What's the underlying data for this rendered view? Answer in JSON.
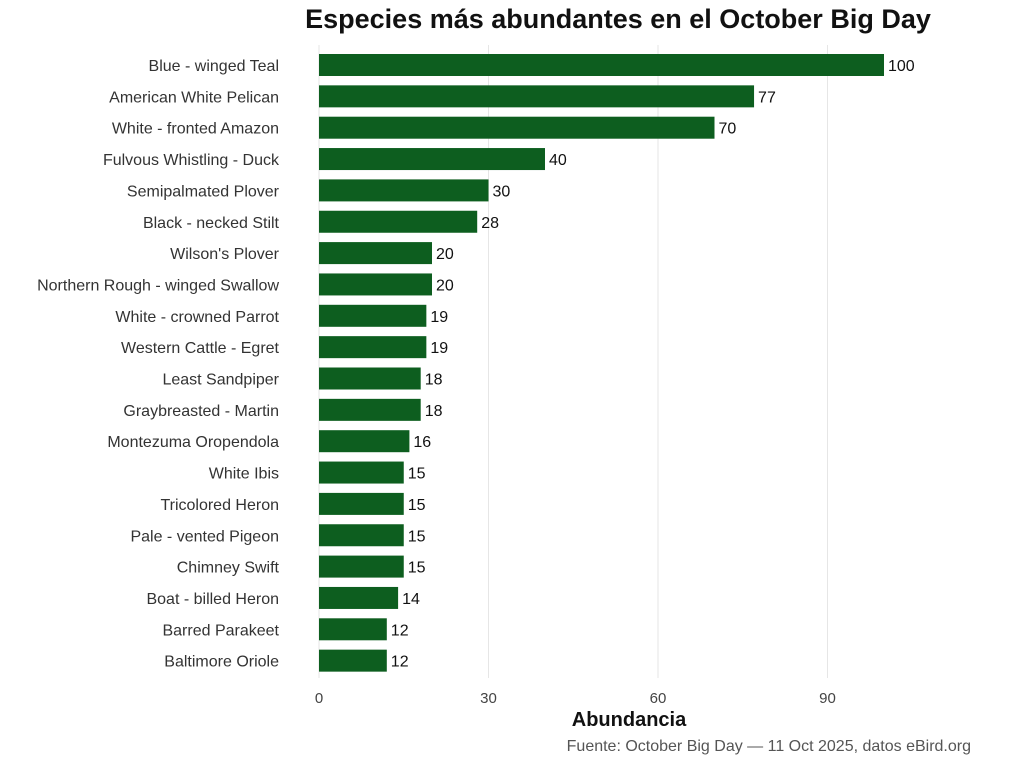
{
  "chart_data": {
    "type": "bar",
    "orientation": "horizontal",
    "title": "Especies más abundantes en el October Big Day",
    "xlabel": "Abundancia",
    "ylabel": "",
    "caption": "Fuente: October Big Day — 11 Oct 2025, datos eBird.org",
    "categories": [
      "Blue - winged Teal",
      "American White Pelican",
      "White - fronted Amazon",
      "Fulvous Whistling - Duck",
      "Semipalmated Plover",
      "Black - necked Stilt",
      "Wilson's Plover",
      "Northern Rough - winged Swallow",
      "White - crowned Parrot",
      "Western Cattle - Egret",
      "Least Sandpiper",
      "Graybreasted - Martin",
      "Montezuma Oropendola",
      "White Ibis",
      "Tricolored Heron",
      "Pale - vented Pigeon",
      "Chimney Swift",
      "Boat - billed Heron",
      "Barred Parakeet",
      "Baltimore Oriole"
    ],
    "values": [
      100,
      77,
      70,
      40,
      30,
      28,
      20,
      20,
      19,
      19,
      18,
      18,
      16,
      15,
      15,
      15,
      15,
      14,
      12,
      12
    ],
    "xlim": [
      0,
      110
    ],
    "xticks": [
      0,
      30,
      60,
      90
    ],
    "xtick_labels": [
      "0",
      "30",
      "60",
      "90"
    ],
    "grid": "vertical",
    "bar_color": "#0d5e1f",
    "gridline_color": "#e6e6e6"
  }
}
